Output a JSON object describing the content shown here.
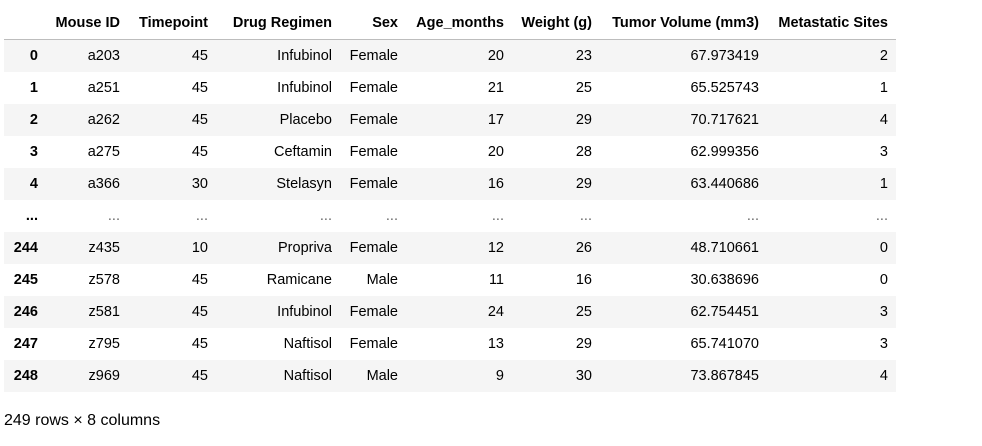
{
  "table": {
    "columns": [
      "",
      "Mouse ID",
      "Timepoint",
      "Drug Regimen",
      "Sex",
      "Age_months",
      "Weight (g)",
      "Tumor Volume (mm3)",
      "Metastatic Sites"
    ],
    "rows": [
      {
        "index": "0",
        "cells": [
          "a203",
          "45",
          "Infubinol",
          "Female",
          "20",
          "23",
          "67.973419",
          "2"
        ]
      },
      {
        "index": "1",
        "cells": [
          "a251",
          "45",
          "Infubinol",
          "Female",
          "21",
          "25",
          "65.525743",
          "1"
        ]
      },
      {
        "index": "2",
        "cells": [
          "a262",
          "45",
          "Placebo",
          "Female",
          "17",
          "29",
          "70.717621",
          "4"
        ]
      },
      {
        "index": "3",
        "cells": [
          "a275",
          "45",
          "Ceftamin",
          "Female",
          "20",
          "28",
          "62.999356",
          "3"
        ]
      },
      {
        "index": "4",
        "cells": [
          "a366",
          "30",
          "Stelasyn",
          "Female",
          "16",
          "29",
          "63.440686",
          "1"
        ]
      },
      {
        "index": "...",
        "cells": [
          "...",
          "...",
          "...",
          "...",
          "...",
          "...",
          "...",
          "..."
        ]
      },
      {
        "index": "244",
        "cells": [
          "z435",
          "10",
          "Propriva",
          "Female",
          "12",
          "26",
          "48.710661",
          "0"
        ]
      },
      {
        "index": "245",
        "cells": [
          "z578",
          "45",
          "Ramicane",
          "Male",
          "11",
          "16",
          "30.638696",
          "0"
        ]
      },
      {
        "index": "246",
        "cells": [
          "z581",
          "45",
          "Infubinol",
          "Female",
          "24",
          "25",
          "62.754451",
          "3"
        ]
      },
      {
        "index": "247",
        "cells": [
          "z795",
          "45",
          "Naftisol",
          "Female",
          "13",
          "29",
          "65.741070",
          "3"
        ]
      },
      {
        "index": "248",
        "cells": [
          "z969",
          "45",
          "Naftisol",
          "Male",
          "9",
          "30",
          "73.867845",
          "4"
        ]
      }
    ]
  },
  "footer": {
    "shape_text": "249 rows × 8 columns"
  }
}
